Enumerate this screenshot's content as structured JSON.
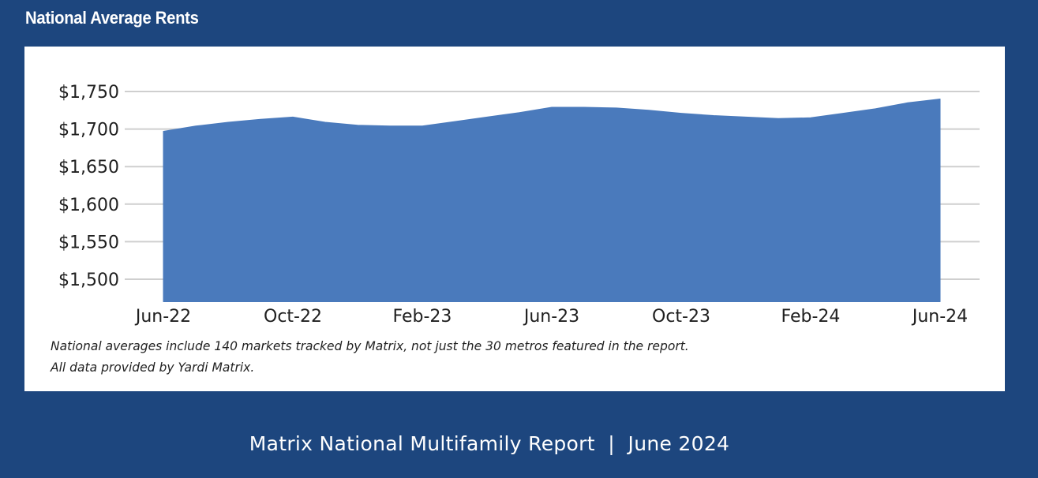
{
  "header": {
    "title": "National Average Rents"
  },
  "notes": {
    "line1": "National averages include 140 markets tracked by Matrix, not just the 30 metros featured in the report.",
    "line2": "All data provided by Yardi Matrix."
  },
  "footer": {
    "text": "Matrix National Multifamily Report  |  June 2024"
  },
  "chart_data": {
    "type": "area",
    "x": [
      "Jun-22",
      "Jul-22",
      "Aug-22",
      "Sep-22",
      "Oct-22",
      "Nov-22",
      "Dec-22",
      "Jan-23",
      "Feb-23",
      "Mar-23",
      "Apr-23",
      "May-23",
      "Jun-23",
      "Jul-23",
      "Aug-23",
      "Sep-23",
      "Oct-23",
      "Nov-23",
      "Dec-23",
      "Jan-24",
      "Feb-24",
      "Mar-24",
      "Apr-24",
      "May-24",
      "Jun-24"
    ],
    "values": [
      1697,
      1704,
      1709,
      1713,
      1716,
      1709,
      1705,
      1704,
      1704,
      1710,
      1716,
      1722,
      1729,
      1729,
      1728,
      1725,
      1721,
      1718,
      1716,
      1714,
      1715,
      1721,
      1727,
      1735,
      1740
    ],
    "x_tick_labels": [
      "Jun-22",
      "Oct-22",
      "Feb-23",
      "Jun-23",
      "Oct-23",
      "Feb-24",
      "Jun-24"
    ],
    "y_tick_labels": [
      "$1,750",
      "$1,700",
      "$1,650",
      "$1,600",
      "$1,550",
      "$1,500"
    ],
    "y_ticks": [
      1750,
      1700,
      1650,
      1600,
      1550,
      1500
    ],
    "ylim": [
      1470,
      1750
    ],
    "grid": true,
    "fill_color": "#4a7abc",
    "grid_color": "#cfcfcf",
    "title": "National Average Rents",
    "xlabel": "",
    "ylabel": ""
  }
}
